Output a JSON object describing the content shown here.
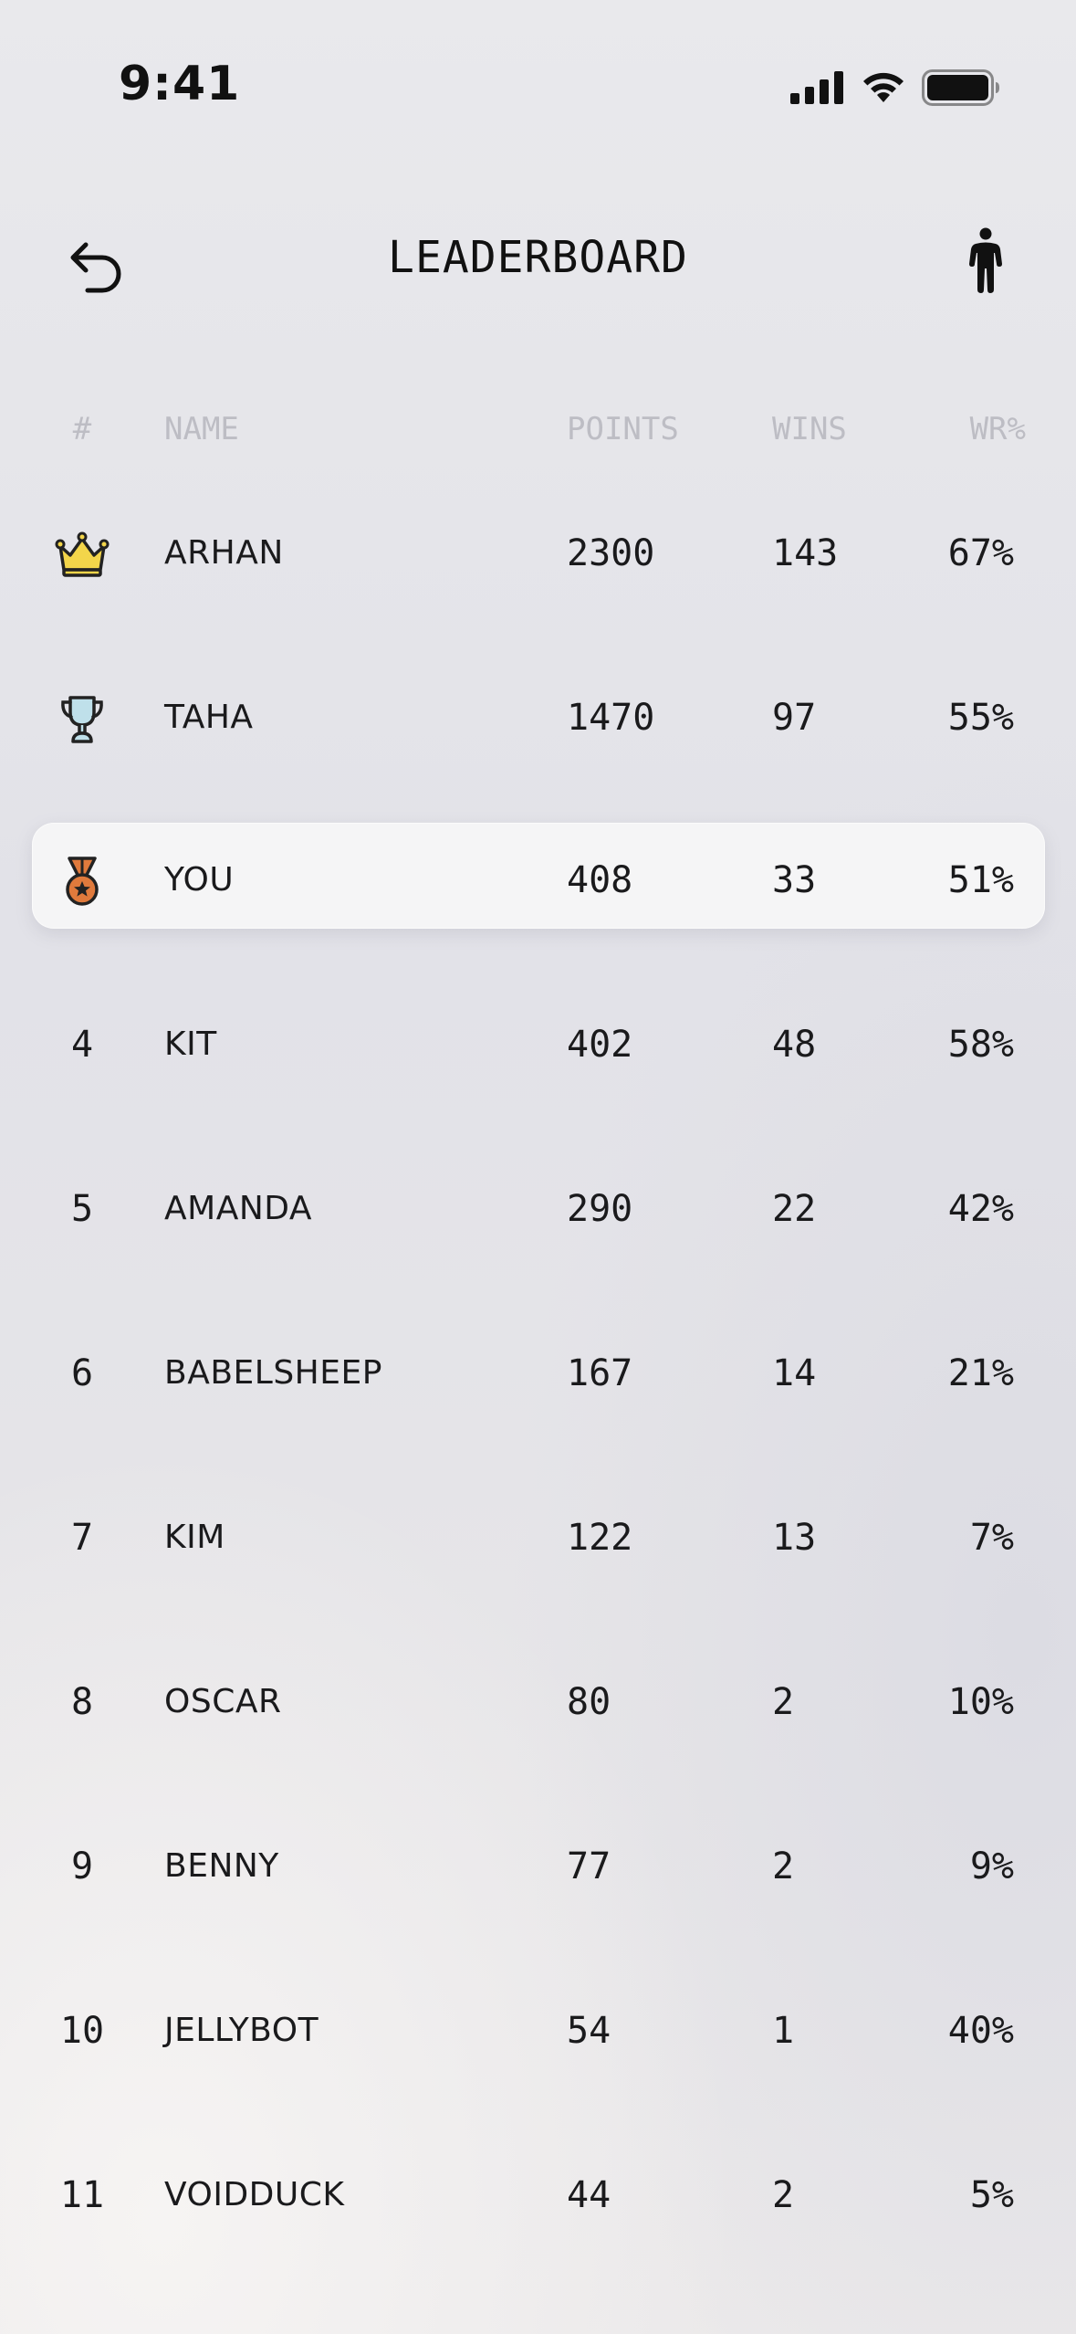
{
  "status_bar": {
    "time": "9:41"
  },
  "header": {
    "title": "LEADERBOARD",
    "back_icon": "undo-arrow-icon",
    "profile_icon": "person-standing-icon"
  },
  "table": {
    "columns": {
      "rank": "#",
      "name": "NAME",
      "points": "POINTS",
      "wins": "WINS",
      "wr": "WR%"
    },
    "rows": [
      {
        "rank": "",
        "icon": "crown-icon",
        "name": "ARHAN",
        "points": "2300",
        "wins": "143",
        "wr": "67%"
      },
      {
        "rank": "",
        "icon": "trophy-icon",
        "name": "TAHA",
        "points": "1470",
        "wins": "97",
        "wr": "55%"
      },
      {
        "rank": "",
        "icon": "medal-icon",
        "name": "YOU",
        "points": "408",
        "wins": "33",
        "wr": "51%",
        "highlighted": true
      },
      {
        "rank": "4",
        "name": "KIT",
        "points": "402",
        "wins": "48",
        "wr": "58%"
      },
      {
        "rank": "5",
        "name": "AMANDA",
        "points": "290",
        "wins": "22",
        "wr": "42%"
      },
      {
        "rank": "6",
        "name": "BABELSHEEP",
        "points": "167",
        "wins": "14",
        "wr": "21%"
      },
      {
        "rank": "7",
        "name": "KIM",
        "points": "122",
        "wins": "13",
        "wr": "7%"
      },
      {
        "rank": "8",
        "name": "OSCAR",
        "points": "80",
        "wins": "2",
        "wr": "10%"
      },
      {
        "rank": "9",
        "name": "BENNY",
        "points": "77",
        "wins": "2",
        "wr": "9%"
      },
      {
        "rank": "10",
        "name": "JELLYBOT",
        "points": "54",
        "wins": "1",
        "wr": "40%"
      },
      {
        "rank": "11",
        "name": "VOIDDUCK",
        "points": "44",
        "wins": "2",
        "wr": "5%"
      }
    ]
  },
  "colors": {
    "crown": "#f3d54a",
    "trophy": "#bfe0ea",
    "medal": "#e07a3c",
    "header_text": "#bdbdc4"
  }
}
